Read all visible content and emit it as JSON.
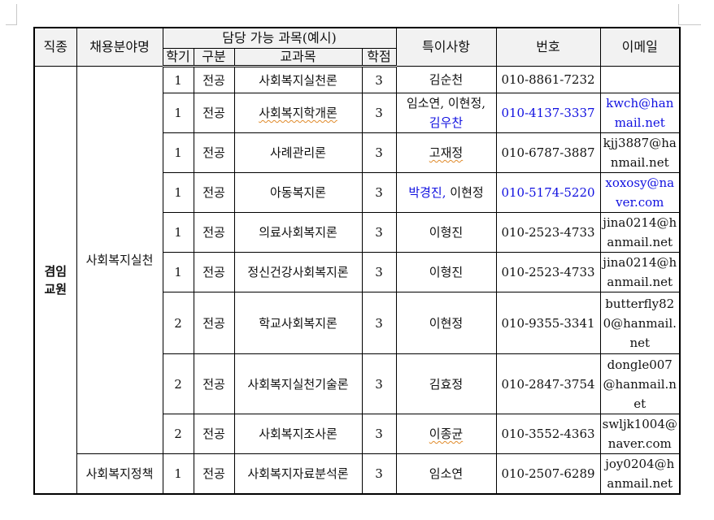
{
  "headers": {
    "job_type": "직종",
    "field": "채용분야명",
    "subjects_group": "담당 가능 과목(예시)",
    "semester": "학기",
    "category": "구분",
    "course": "교과목",
    "credits": "학점",
    "notes": "특이사항",
    "phone": "번호",
    "email": "이메일"
  },
  "job_type": "겸임\n교원",
  "fields": [
    "사회복지실천",
    "사회복지정책"
  ],
  "rows": [
    {
      "semester": "1",
      "category": "전공",
      "course": "사회복지실천론",
      "credits": "3",
      "notes": "김순천",
      "notes_blue": "",
      "phone": "010-8861-7232",
      "email": "",
      "blue_phone": false,
      "blue_email": false
    },
    {
      "semester": "1",
      "category": "전공",
      "course": "사회복지학개론",
      "credits": "3",
      "notes": "임소연, 이현정,",
      "notes_blue": "김우찬",
      "phone": "010-4137-3337",
      "email": "kwch@hanmail.net",
      "blue_phone": true,
      "blue_email": true
    },
    {
      "semester": "1",
      "category": "전공",
      "course": "사례관리론",
      "credits": "3",
      "notes": "고재정",
      "notes_blue": "",
      "phone": "010-6787-3887",
      "email": "kjj3887@hanmail.net",
      "blue_phone": false,
      "blue_email": false
    },
    {
      "semester": "1",
      "category": "전공",
      "course": "아동복지론",
      "credits": "3",
      "notes": "이현정",
      "notes_blue": "박경진, ",
      "phone": "010-5174-5220",
      "email": "xoxosy@naver.com",
      "blue_phone": true,
      "blue_email": true
    },
    {
      "semester": "1",
      "category": "전공",
      "course": "의료사회복지론",
      "credits": "3",
      "notes": "이형진",
      "notes_blue": "",
      "phone": "010-2523-4733",
      "email": "jina0214@hanmail.net",
      "blue_phone": false,
      "blue_email": false
    },
    {
      "semester": "1",
      "category": "전공",
      "course": "정신건강사회복지론",
      "credits": "3",
      "notes": "이형진",
      "notes_blue": "",
      "phone": "010-2523-4733",
      "email": "jina0214@hanmail.net",
      "blue_phone": false,
      "blue_email": false
    },
    {
      "semester": "2",
      "category": "전공",
      "course": "학교사회복지론",
      "credits": "3",
      "notes": "이현정",
      "notes_blue": "",
      "phone": "010-9355-3341",
      "email": "butterfly820@hanmail.net",
      "blue_phone": false,
      "blue_email": false
    },
    {
      "semester": "2",
      "category": "전공",
      "course": "사회복지실천기술론",
      "credits": "3",
      "notes": "김효정",
      "notes_blue": "",
      "phone": "010-2847-3754",
      "email": "dongle007@hanmail.net",
      "blue_phone": false,
      "blue_email": false
    },
    {
      "semester": "2",
      "category": "전공",
      "course": "사회복지조사론",
      "credits": "3",
      "notes": "이종균",
      "notes_blue": "",
      "phone": "010-3552-4363",
      "email": "swljk1004@naver.com",
      "blue_phone": false,
      "blue_email": false
    },
    {
      "semester": "1",
      "category": "전공",
      "course": "사회복지자료분석론",
      "credits": "3",
      "notes": "임소연",
      "notes_blue": "",
      "phone": "010-2507-6289",
      "email": "joy0204@hanmail.net",
      "blue_phone": false,
      "blue_email": false
    }
  ]
}
